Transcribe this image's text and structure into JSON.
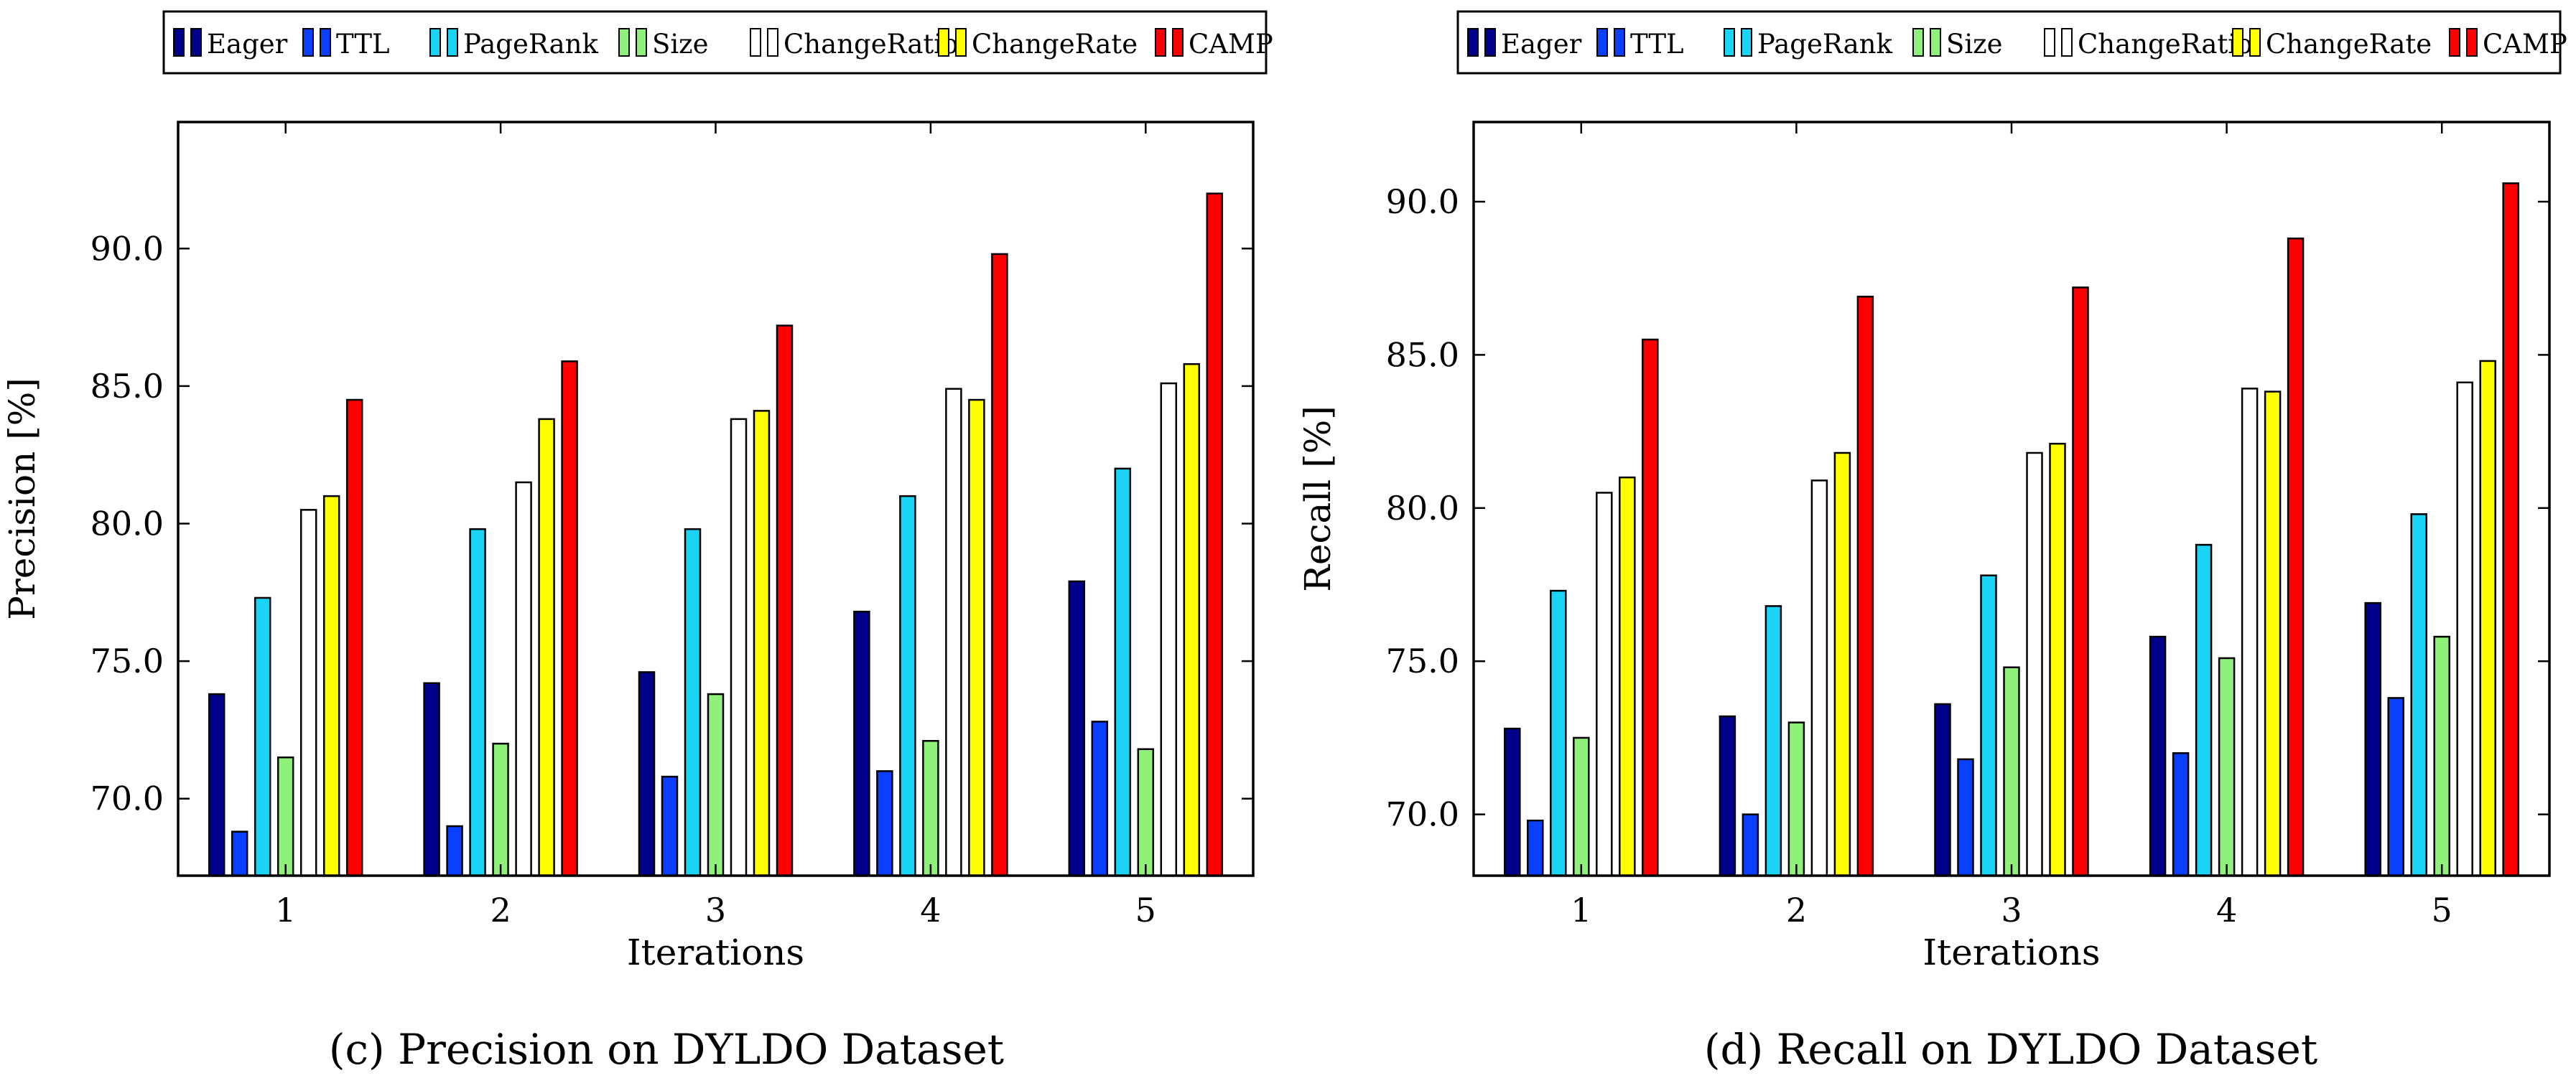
{
  "chart_data": [
    {
      "id": "c",
      "type": "bar",
      "caption": "(c) Precision on DYLDO Dataset",
      "xlabel": "Iterations",
      "ylabel": "Precision [%]",
      "categories": [
        "1",
        "2",
        "3",
        "4",
        "5"
      ],
      "ylim": [
        67.2,
        94.6
      ],
      "yticks": [
        70.0,
        75.0,
        80.0,
        85.0,
        90.0
      ],
      "ytick_labels": [
        "70.0",
        "75.0",
        "80.0",
        "85.0",
        "90.0"
      ],
      "grid": false,
      "legend_position": "top-center (above plot)",
      "series": [
        {
          "name": "Eager",
          "color": "#00008b",
          "values": [
            73.8,
            74.2,
            74.6,
            76.8,
            77.9
          ]
        },
        {
          "name": "TTL",
          "color": "#0a3fff",
          "values": [
            68.8,
            69.0,
            70.8,
            71.0,
            72.8
          ]
        },
        {
          "name": "PageRank",
          "color": "#1ad3f5",
          "values": [
            77.3,
            79.8,
            79.8,
            81.0,
            82.0
          ]
        },
        {
          "name": "Size",
          "color": "#8ff07a",
          "values": [
            71.5,
            72.0,
            73.8,
            72.1,
            71.8
          ]
        },
        {
          "name": "ChangeRatio",
          "color": "#ffffff",
          "values": [
            80.5,
            81.5,
            83.8,
            84.9,
            85.1
          ]
        },
        {
          "name": "ChangeRate",
          "color": "#ffff00",
          "values": [
            81.0,
            83.8,
            84.1,
            84.5,
            85.8
          ]
        },
        {
          "name": "CAMP",
          "color": "#ff0000",
          "values": [
            84.5,
            85.9,
            87.2,
            89.8,
            92.0
          ]
        }
      ]
    },
    {
      "id": "d",
      "type": "bar",
      "caption": "(d) Recall on DYLDO Dataset",
      "xlabel": "Iterations",
      "ylabel": "Recall [%]",
      "categories": [
        "1",
        "2",
        "3",
        "4",
        "5"
      ],
      "ylim": [
        68.0,
        92.6
      ],
      "yticks": [
        70.0,
        75.0,
        80.0,
        85.0,
        90.0
      ],
      "ytick_labels": [
        "70.0",
        "75.0",
        "80.0",
        "85.0",
        "90.0"
      ],
      "grid": false,
      "legend_position": "top-center (above plot)",
      "series": [
        {
          "name": "Eager",
          "color": "#00008b",
          "values": [
            72.8,
            73.2,
            73.6,
            75.8,
            76.9
          ]
        },
        {
          "name": "TTL",
          "color": "#0a3fff",
          "values": [
            69.8,
            70.0,
            71.8,
            72.0,
            73.8
          ]
        },
        {
          "name": "PageRank",
          "color": "#1ad3f5",
          "values": [
            77.3,
            76.8,
            77.8,
            78.8,
            79.8
          ]
        },
        {
          "name": "Size",
          "color": "#8ff07a",
          "values": [
            72.5,
            73.0,
            74.8,
            75.1,
            75.8
          ]
        },
        {
          "name": "ChangeRatio",
          "color": "#ffffff",
          "values": [
            80.5,
            80.9,
            81.8,
            83.9,
            84.1
          ]
        },
        {
          "name": "ChangeRate",
          "color": "#ffff00",
          "values": [
            81.0,
            81.8,
            82.1,
            83.8,
            84.8
          ]
        },
        {
          "name": "CAMP",
          "color": "#ff0000",
          "values": [
            85.5,
            86.9,
            87.2,
            88.8,
            90.6
          ]
        }
      ]
    }
  ]
}
